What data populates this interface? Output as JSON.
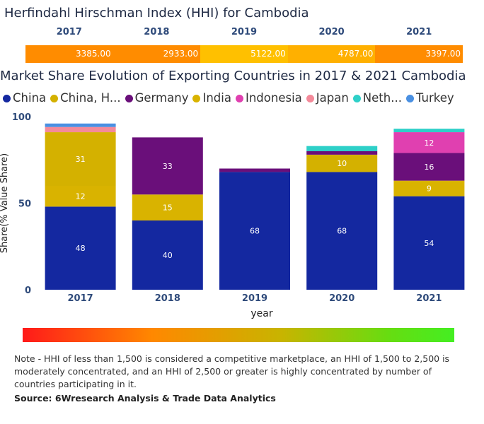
{
  "hhi": {
    "title": "Herfindahl Hirschman Index (HHI) for Cambodia",
    "years": [
      "2017",
      "2018",
      "2019",
      "2020",
      "2021"
    ],
    "values": [
      "3385.00",
      "2933.00",
      "5122.00",
      "4787.00",
      "3397.00"
    ],
    "colors": [
      "#ff8c00",
      "#ff8c00",
      "#ffc000",
      "#ffb000",
      "#ff8c00"
    ]
  },
  "chart_data": {
    "type": "bar",
    "stacked": true,
    "title": "Market Share Evolution of Exporting Countries in 2017 & 2021 Cambodia",
    "xlabel": "year",
    "ylabel": "Share(% Value Share)",
    "ylim": [
      0,
      100
    ],
    "yticks": [
      0,
      50,
      100
    ],
    "categories": [
      "2017",
      "2018",
      "2019",
      "2020",
      "2021"
    ],
    "legend_labels": [
      "China",
      "China, H...",
      "Germany",
      "India",
      "Indonesia",
      "Japan",
      "Neth...",
      "Turkey"
    ],
    "series": [
      {
        "name": "China",
        "color": "#1428a0",
        "values": [
          48,
          40,
          68,
          68,
          54
        ],
        "labels": [
          "48",
          "40",
          "68",
          "68",
          "54"
        ]
      },
      {
        "name": "India",
        "color": "#d9b300",
        "values": [
          12,
          15,
          0,
          0,
          9
        ],
        "labels": [
          "12",
          "15",
          "",
          "",
          "9"
        ]
      },
      {
        "name": "China, H...",
        "color": "#d4b100",
        "values": [
          31,
          0,
          0,
          10,
          0
        ],
        "labels": [
          "31",
          "",
          "",
          "10",
          ""
        ]
      },
      {
        "name": "Germany",
        "color": "#6a0f7a",
        "values": [
          0,
          33,
          2,
          2,
          16
        ],
        "labels": [
          "",
          "33",
          "",
          "",
          "16"
        ]
      },
      {
        "name": "Indonesia",
        "color": "#e040b0",
        "values": [
          0,
          0,
          0,
          0,
          12
        ],
        "labels": [
          "",
          "",
          "",
          "",
          "12"
        ]
      },
      {
        "name": "Japan",
        "color": "#f48a9a",
        "values": [
          3,
          0,
          0,
          0,
          0
        ],
        "labels": [
          "",
          "",
          "",
          "",
          ""
        ]
      },
      {
        "name": "Neth...",
        "color": "#2ed0c8",
        "values": [
          0,
          0,
          0,
          3,
          2
        ],
        "labels": [
          "",
          "",
          "",
          "",
          ""
        ]
      },
      {
        "name": "Turkey",
        "color": "#4a90e2",
        "values": [
          2,
          0,
          0,
          0,
          0
        ],
        "labels": [
          "",
          "",
          "",
          "",
          ""
        ]
      }
    ],
    "legend_colors": [
      "#1428a0",
      "#d4b100",
      "#6a0f7a",
      "#d9b300",
      "#e040b0",
      "#f48a9a",
      "#2ed0c8",
      "#4a90e2"
    ]
  },
  "note": "Note - HHI of less than 1,500 is considered a competitive marketplace, an HHI of 1,500 to 2,500 is moderately concentrated, and an HHI of 2,500 or greater is highly concentrated by number of countries participating in it.",
  "source": "Source: 6Wresearch Analysis & Trade Data Analytics"
}
